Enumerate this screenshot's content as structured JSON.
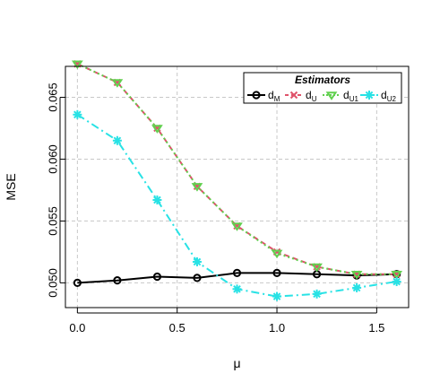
{
  "chart_data": {
    "type": "line",
    "title": "",
    "xlabel": "μ",
    "ylabel": "MSE",
    "xlim": [
      -0.06,
      1.66
    ],
    "ylim": [
      0.048,
      0.0675
    ],
    "xticks": [
      0.0,
      0.5,
      1.0,
      1.5
    ],
    "xtick_labels": [
      "0.0",
      "0.5",
      "1.0",
      "1.5"
    ],
    "yticks": [
      0.05,
      0.055,
      0.06,
      0.065
    ],
    "ytick_labels": [
      "0.050",
      "0.055",
      "0.060",
      "0.065"
    ],
    "grid": true,
    "legend": {
      "title": "Estimators",
      "placement": "top-right",
      "entries": [
        {
          "base": "d",
          "sub": "M"
        },
        {
          "base": "d",
          "sub": "U"
        },
        {
          "base": "d",
          "sub": "U1"
        },
        {
          "base": "d",
          "sub": "U2"
        }
      ]
    },
    "x": [
      0.0,
      0.2,
      0.4,
      0.6,
      0.8,
      1.0,
      1.2,
      1.4,
      1.6
    ],
    "series": [
      {
        "name": "dM",
        "color": "#000000",
        "marker": "circle",
        "dash": "",
        "values": [
          0.05,
          0.0502,
          0.0505,
          0.0504,
          0.0508,
          0.0508,
          0.0507,
          0.0506,
          0.0507
        ]
      },
      {
        "name": "dU",
        "color": "#df536b",
        "marker": "x",
        "dash": "6,4",
        "values": [
          0.0677,
          0.0662,
          0.0625,
          0.0578,
          0.0546,
          0.0525,
          0.0513,
          0.0507,
          0.0507
        ]
      },
      {
        "name": "dU1",
        "color": "#61d04f",
        "marker": "triangle-down",
        "dash": "2,3",
        "values": [
          0.0677,
          0.0662,
          0.0625,
          0.0578,
          0.0546,
          0.0524,
          0.0513,
          0.0507,
          0.0507
        ]
      },
      {
        "name": "dU2",
        "color": "#28e2e5",
        "marker": "asterisk",
        "dash": "9,4,2,4",
        "values": [
          0.0636,
          0.0615,
          0.0567,
          0.0517,
          0.0495,
          0.0489,
          0.0491,
          0.0496,
          0.0501
        ]
      }
    ]
  }
}
